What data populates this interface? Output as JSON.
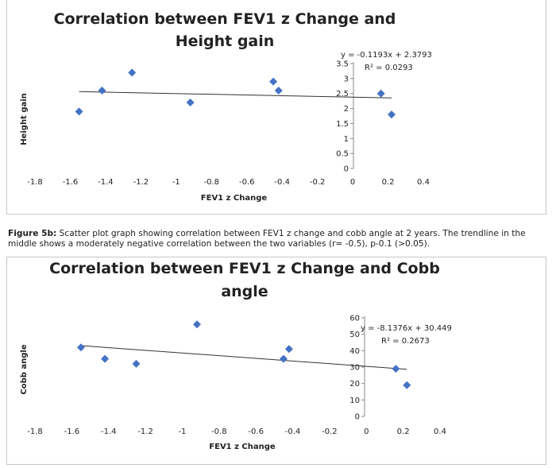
{
  "chart_data": [
    {
      "type": "scatter",
      "title_lines": [
        "Correlation between FEV1 z Change and",
        "Height gain"
      ],
      "xlabel": "FEV1 z Change",
      "ylabel": "Height gain",
      "xlim": [
        -1.8,
        0.4
      ],
      "ylim": [
        0,
        3.5
      ],
      "xticks": [
        -1.8,
        -1.6,
        -1.4,
        -1.2,
        -1,
        -0.8,
        -0.6,
        -0.4,
        -0.2,
        0,
        0.2,
        0.4
      ],
      "xtick_labels": [
        "-1.8",
        "-1.6",
        "-1.4",
        "-1.2",
        "-1",
        "-0.8",
        "-0.6",
        "-0.4",
        "-0.2",
        "0",
        "0.2",
        "0.4"
      ],
      "yticks": [
        0,
        0.5,
        1,
        1.5,
        2,
        2.5,
        3,
        3.5
      ],
      "ytick_labels": [
        "0",
        "0.5",
        "1",
        "1.5",
        "2",
        "2.5",
        "3",
        "3.5"
      ],
      "points": [
        {
          "x": -1.55,
          "y": 1.9
        },
        {
          "x": -1.42,
          "y": 2.6
        },
        {
          "x": -1.25,
          "y": 3.2
        },
        {
          "x": -0.92,
          "y": 2.2
        },
        {
          "x": -0.45,
          "y": 2.9
        },
        {
          "x": -0.42,
          "y": 2.6
        },
        {
          "x": 0.16,
          "y": 2.5
        },
        {
          "x": 0.22,
          "y": 1.8
        }
      ],
      "trendline": {
        "slope": -0.1193,
        "intercept": 2.3793,
        "x_range": [
          -1.55,
          0.22
        ]
      },
      "equation": "y = -0.1193x + 2.3793",
      "r_squared": "R² = 0.0293",
      "marker_color": "#4472c4",
      "grid": false
    },
    {
      "type": "scatter",
      "title_lines": [
        "Correlation between FEV1 z Change and Cobb",
        "angle"
      ],
      "xlabel": "FEV1 z Change",
      "ylabel": "Cobb angle",
      "xlim": [
        -1.8,
        0.4
      ],
      "ylim": [
        0,
        60
      ],
      "xticks": [
        -1.8,
        -1.6,
        -1.4,
        -1.2,
        -1,
        -0.8,
        -0.6,
        -0.4,
        -0.2,
        0,
        0.2,
        0.4
      ],
      "xtick_labels": [
        "-1.8",
        "-1.6",
        "-1.4",
        "-1.2",
        "-1",
        "-0.8",
        "-0.6",
        "-0.4",
        "-0.2",
        "0",
        "0.2",
        "0.4"
      ],
      "yticks": [
        0,
        10,
        20,
        30,
        40,
        50,
        60
      ],
      "ytick_labels": [
        "0",
        "10",
        "20",
        "30",
        "40",
        "50",
        "60"
      ],
      "points": [
        {
          "x": -1.55,
          "y": 42
        },
        {
          "x": -1.42,
          "y": 35
        },
        {
          "x": -1.25,
          "y": 32
        },
        {
          "x": -0.92,
          "y": 56
        },
        {
          "x": -0.45,
          "y": 35
        },
        {
          "x": -0.42,
          "y": 41
        },
        {
          "x": 0.16,
          "y": 29
        },
        {
          "x": 0.22,
          "y": 19
        }
      ],
      "trendline": {
        "slope": -8.1376,
        "intercept": 30.449,
        "x_range": [
          -1.55,
          0.22
        ]
      },
      "equation": "y = -8.1376x + 30.449",
      "r_squared": "R² = 0.2673",
      "marker_color": "#4472c4",
      "grid": false
    }
  ],
  "caption": {
    "label": "Figure 5b:",
    "text": " Scatter plot graph showing correlation between FEV1 z change and cobb angle at 2 years. The trendline in the middle shows a moderately negative correlation between the two variables (r= -0.5), p-0.1 (>0.05)."
  }
}
